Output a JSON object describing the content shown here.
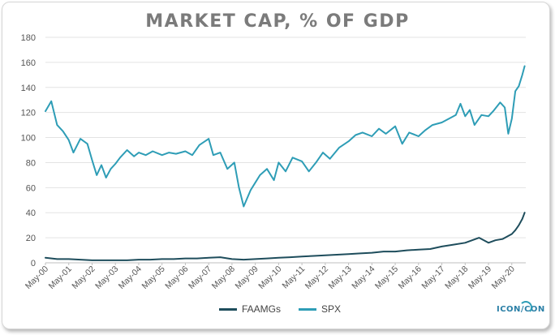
{
  "chart_data": {
    "type": "line",
    "title": "MARKET CAP, % OF GDP",
    "xlabel": "",
    "ylabel": "",
    "ylim": [
      0,
      180
    ],
    "yticks": [
      0,
      20,
      40,
      60,
      80,
      100,
      120,
      140,
      160,
      180
    ],
    "categories": [
      "May-00",
      "May-01",
      "May-02",
      "May-03",
      "May-04",
      "May-05",
      "May-06",
      "May-07",
      "May-08",
      "May-09",
      "May-10",
      "May-11",
      "May-12",
      "May-13",
      "May-14",
      "May-15",
      "May-16",
      "May-17",
      "May-18",
      "May-19",
      "May-20"
    ],
    "colors": {
      "FAAMGs": "#1e4d5c",
      "SPX": "#2e9db6",
      "grid": "#e3e3e3",
      "axis": "#bfbfbf"
    },
    "series": [
      {
        "name": "SPX",
        "x": [
          0,
          0.25,
          0.5,
          0.75,
          1.0,
          1.2,
          1.5,
          1.8,
          2.0,
          2.2,
          2.4,
          2.6,
          2.8,
          3.0,
          3.2,
          3.5,
          3.8,
          4.0,
          4.3,
          4.6,
          5.0,
          5.3,
          5.6,
          6.0,
          6.3,
          6.6,
          7.0,
          7.2,
          7.5,
          7.8,
          8.1,
          8.3,
          8.5,
          8.8,
          9.0,
          9.2,
          9.5,
          9.8,
          10.0,
          10.3,
          10.6,
          11.0,
          11.3,
          11.6,
          11.9,
          12.2,
          12.6,
          13.0,
          13.3,
          13.6,
          14.0,
          14.3,
          14.6,
          15.0,
          15.3,
          15.6,
          16.0,
          16.3,
          16.6,
          17.0,
          17.3,
          17.6,
          17.8,
          18.0,
          18.2,
          18.4,
          18.7,
          19.0,
          19.2,
          19.5,
          19.7,
          19.85,
          20.0,
          20.15,
          20.3,
          20.45,
          20.55
        ],
        "values": [
          121,
          129,
          110,
          105,
          98,
          88,
          99,
          95,
          82,
          70,
          78,
          68,
          75,
          79,
          84,
          90,
          85,
          88,
          86,
          89,
          86,
          88,
          87,
          89,
          86,
          94,
          99,
          86,
          88,
          75,
          80,
          60,
          45,
          58,
          64,
          70,
          75,
          66,
          80,
          73,
          84,
          81,
          73,
          80,
          88,
          83,
          92,
          97,
          102,
          104,
          101,
          107,
          103,
          109,
          95,
          104,
          101,
          106,
          110,
          112,
          115,
          118,
          127,
          117,
          122,
          110,
          118,
          117,
          121,
          128,
          124,
          103,
          115,
          137,
          141,
          150,
          157
        ]
      },
      {
        "name": "FAAMGs",
        "x": [
          0,
          0.5,
          1.0,
          1.5,
          2.0,
          2.5,
          3.0,
          3.5,
          4.0,
          4.5,
          5.0,
          5.5,
          6.0,
          6.5,
          7.0,
          7.5,
          8.0,
          8.5,
          9.0,
          9.5,
          10.0,
          10.5,
          11.0,
          11.5,
          12.0,
          12.5,
          13.0,
          13.5,
          14.0,
          14.5,
          15.0,
          15.5,
          16.0,
          16.5,
          17.0,
          17.5,
          18.0,
          18.3,
          18.6,
          19.0,
          19.3,
          19.6,
          19.8,
          20.0,
          20.15,
          20.3,
          20.45,
          20.55
        ],
        "values": [
          4,
          3,
          3,
          2.5,
          2,
          2,
          2,
          2,
          2.5,
          2.5,
          3,
          3,
          3.5,
          3.5,
          4,
          4.5,
          3,
          2.5,
          3,
          3.5,
          4,
          4.5,
          5,
          5.5,
          6,
          6.5,
          7,
          7.5,
          8,
          9,
          9,
          10,
          10.5,
          11,
          13,
          14.5,
          16,
          18,
          20,
          16,
          18,
          19,
          21,
          23,
          26,
          30,
          35,
          40
        ]
      }
    ]
  },
  "legend": {
    "items": [
      {
        "label": "FAAMGs",
        "color": "#1e4d5c"
      },
      {
        "label": "SPX",
        "color": "#2e9db6"
      }
    ]
  },
  "logo": {
    "text": "ICON/CON"
  }
}
